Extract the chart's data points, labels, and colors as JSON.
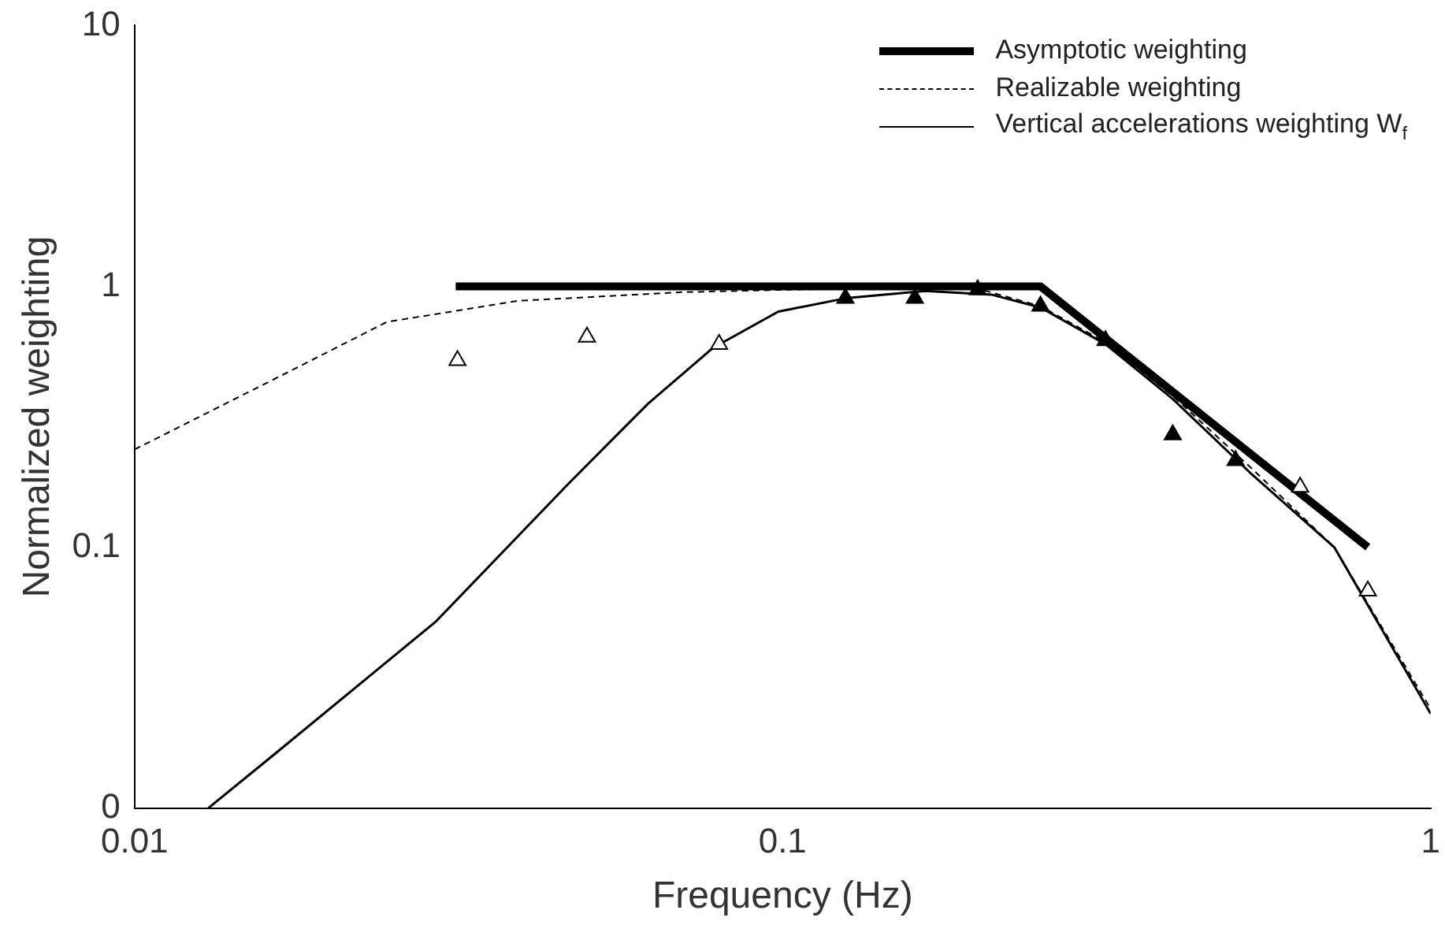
{
  "chart_data": {
    "type": "line",
    "xlabel": "Frequency (Hz)",
    "ylabel": "Normalized weighting",
    "log": "xy",
    "xlim": [
      0.01,
      1
    ],
    "xticks": [
      0.01,
      0.1,
      1
    ],
    "ylim": [
      0.01,
      10
    ],
    "yticks": [
      {
        "value": 0.01,
        "label": "0"
      },
      0.1,
      1,
      10
    ],
    "grid": false,
    "legend": "top right",
    "series": [
      {
        "name": "Asymptotic weighting",
        "color": "#000000",
        "line_style": "solid",
        "marker": "none",
        "x": [
          0.0313,
          0.25,
          0.8
        ],
        "values": [
          1,
          1,
          0.1
        ]
      },
      {
        "name": "Realizable weighting",
        "color": "#000000",
        "line_style": "dashed",
        "marker": "none",
        "x": [
          0.01,
          0.0164,
          0.0245,
          0.039,
          0.07,
          0.12,
          0.2,
          0.25,
          0.315,
          0.4,
          0.53,
          0.71,
          1
        ],
        "values": [
          0.237,
          0.44,
          0.73,
          0.88,
          0.95,
          0.98,
          0.98,
          0.84,
          0.61,
          0.38,
          0.2,
          0.1,
          0.024
        ]
      },
      {
        "name": "Vertical accelerations weighting W$_{f}$",
        "color": "#000000",
        "line_style": "solid",
        "marker": "none",
        "x": [
          0.013,
          0.0164,
          0.0292,
          0.0465,
          0.062,
          0.078,
          0.0985,
          0.125,
          0.166,
          0.21,
          0.25,
          0.315,
          0.4,
          0.53,
          0.71,
          1
        ],
        "values": [
          0.01,
          0.016,
          0.052,
          0.173,
          0.355,
          0.58,
          0.8,
          0.9,
          0.96,
          0.93,
          0.83,
          0.6,
          0.37,
          0.19,
          0.1,
          0.023
        ]
      },
      {
        "type": "scatter",
        "color": "#000000",
        "marker": "triangle",
        "x": [
          0.0315,
          0.0499,
          0.0798,
          0.629,
          0.8
        ],
        "values": [
          0.52,
          0.64,
          0.6,
          0.17,
          0.068
        ]
      },
      {
        "type": "scatter",
        "color": "#000000",
        "marker": "triangle",
        "x": [
          0.125,
          0.16,
          0.2,
          0.25,
          0.315,
          0.4,
          0.5
        ],
        "values": [
          0.9,
          0.9,
          0.97,
          0.84,
          0.62,
          0.27,
          0.215
        ]
      }
    ]
  }
}
